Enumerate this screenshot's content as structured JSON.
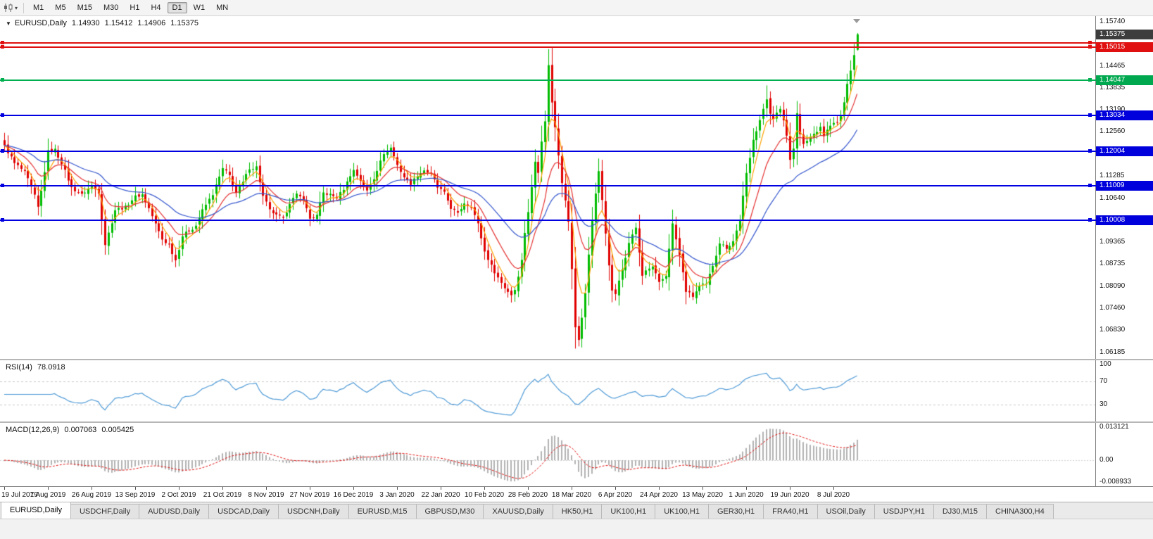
{
  "toolbar": {
    "timeframes": [
      "M1",
      "M5",
      "M15",
      "M30",
      "H1",
      "H4",
      "D1",
      "W1",
      "MN"
    ],
    "active_timeframe": "D1"
  },
  "chart": {
    "title": "EURUSD,Daily",
    "ohlc": {
      "open": "1.14930",
      "high": "1.15412",
      "low": "1.14906",
      "close": "1.15375"
    },
    "ylim": [
      1.06,
      1.159
    ],
    "up_color": "#00bc00",
    "down_color": "#e00000",
    "price_axis": {
      "labels": [
        "1.15740",
        "1.14465",
        "1.13835",
        "1.13190",
        "1.12560",
        "1.11285",
        "1.10640",
        "1.09365",
        "1.08735",
        "1.08090",
        "1.07460",
        "1.06830",
        "1.06185"
      ],
      "badges": [
        {
          "value": "1.15375",
          "bg": "#3d3d3d"
        },
        {
          "value": "1.15015",
          "bg": "#e01010"
        },
        {
          "value": "1.14047",
          "bg": "#00a84f"
        },
        {
          "value": "1.13034",
          "bg": "#0000dc"
        },
        {
          "value": "1.12004",
          "bg": "#0000dc"
        },
        {
          "value": "1.11009",
          "bg": "#0000dc"
        },
        {
          "value": "1.10008",
          "bg": "#0000dc"
        }
      ]
    },
    "hlines": [
      {
        "price": 1.1513,
        "color": "#e01010"
      },
      {
        "price": 1.15015,
        "color": "#e01010"
      },
      {
        "price": 1.14047,
        "color": "#00b050"
      },
      {
        "price": 1.13034,
        "color": "#0000e0"
      },
      {
        "price": 1.12004,
        "color": "#0000e0"
      },
      {
        "price": 1.11009,
        "color": "#0000e0"
      },
      {
        "price": 1.10008,
        "color": "#0000e0"
      }
    ],
    "moving_averages": [
      {
        "period": 5,
        "color": "#ffa200"
      },
      {
        "period": 13,
        "color": "#e43030"
      },
      {
        "period": 34,
        "color": "#3355cc"
      }
    ],
    "dates": [
      "19 Jul 2019",
      "7 Aug 2019",
      "26 Aug 2019",
      "13 Sep 2019",
      "2 Oct 2019",
      "21 Oct 2019",
      "8 Nov 2019",
      "27 Nov 2019",
      "16 Dec 2019",
      "3 Jan 2020",
      "22 Jan 2020",
      "10 Feb 2020",
      "28 Feb 2020",
      "18 Mar 2020",
      "6 Apr 2020",
      "24 Apr 2020",
      "13 May 2020",
      "1 Jun 2020",
      "19 Jun 2020",
      "8 Jul 2020"
    ],
    "candles_per_tick": 13
  },
  "rsi": {
    "label": "RSI(14)",
    "value": "78.0918",
    "axis_labels": [
      "100",
      "70",
      "30"
    ],
    "axis_values": [
      100,
      70,
      30
    ],
    "levels": [
      70,
      30
    ],
    "ylim": [
      0,
      107
    ],
    "color": "#4f9ad6"
  },
  "macd": {
    "label": "MACD(12,26,9)",
    "value_main": "0.007063",
    "value_signal": "0.005425",
    "axis_labels": [
      "0.013121",
      "0.00",
      "-0.008933"
    ],
    "axis_values": [
      0.013121,
      0,
      -0.008933
    ],
    "ylim": [
      -0.0096,
      0.0138
    ],
    "bar_color": "#b2b2b2",
    "signal_color": "#e01010",
    "params": [
      12,
      26,
      9
    ]
  },
  "chart_data": {
    "type": "candlestick",
    "symbol": "EURUSD",
    "timeframe": "Daily",
    "num_candles": 255,
    "ylim": [
      1.06,
      1.159
    ],
    "x_tick_labels": [
      "19 Jul 2019",
      "7 Aug 2019",
      "26 Aug 2019",
      "13 Sep 2019",
      "2 Oct 2019",
      "21 Oct 2019",
      "8 Nov 2019",
      "27 Nov 2019",
      "16 Dec 2019",
      "3 Jan 2020",
      "22 Jan 2020",
      "10 Feb 2020",
      "28 Feb 2020",
      "18 Mar 2020",
      "6 Apr 2020",
      "24 Apr 2020",
      "13 May 2020",
      "1 Jun 2020",
      "19 Jun 2020",
      "8 Jul 2020"
    ],
    "close_anchors": [
      [
        0,
        1.1215
      ],
      [
        3,
        1.1165
      ],
      [
        6,
        1.114
      ],
      [
        9,
        1.1072
      ],
      [
        10,
        1.1038
      ],
      [
        11,
        1.1085
      ],
      [
        13,
        1.12
      ],
      [
        15,
        1.1205
      ],
      [
        17,
        1.1165
      ],
      [
        20,
        1.1095
      ],
      [
        23,
        1.1075
      ],
      [
        26,
        1.11
      ],
      [
        28,
        1.108
      ],
      [
        30,
        1.093
      ],
      [
        33,
        1.103
      ],
      [
        36,
        1.104
      ],
      [
        39,
        1.107
      ],
      [
        41,
        1.1075
      ],
      [
        43,
        1.1035
      ],
      [
        45,
        1.099
      ],
      [
        47,
        1.0945
      ],
      [
        49,
        1.093
      ],
      [
        51,
        1.0885
      ],
      [
        53,
        1.0955
      ],
      [
        55,
        1.097
      ],
      [
        57,
        1.0985
      ],
      [
        59,
        1.103
      ],
      [
        62,
        1.1075
      ],
      [
        65,
        1.115
      ],
      [
        67,
        1.113
      ],
      [
        69,
        1.108
      ],
      [
        71,
        1.111
      ],
      [
        73,
        1.115
      ],
      [
        75,
        1.1155
      ],
      [
        77,
        1.107
      ],
      [
        79,
        1.103
      ],
      [
        81,
        1.1015
      ],
      [
        83,
        1.1005
      ],
      [
        85,
        1.105
      ],
      [
        87,
        1.1075
      ],
      [
        89,
        1.106
      ],
      [
        91,
        1.1005
      ],
      [
        93,
        1.1015
      ],
      [
        95,
        1.108
      ],
      [
        97,
        1.1075
      ],
      [
        99,
        1.1065
      ],
      [
        101,
        1.109
      ],
      [
        103,
        1.113
      ],
      [
        104,
        1.1145
      ],
      [
        106,
        1.1115
      ],
      [
        108,
        1.1085
      ],
      [
        110,
        1.112
      ],
      [
        112,
        1.1175
      ],
      [
        114,
        1.12
      ],
      [
        115,
        1.121
      ],
      [
        117,
        1.116
      ],
      [
        119,
        1.1125
      ],
      [
        121,
        1.1105
      ],
      [
        123,
        1.113
      ],
      [
        125,
        1.1145
      ],
      [
        127,
        1.1135
      ],
      [
        129,
        1.1095
      ],
      [
        131,
        1.108
      ],
      [
        133,
        1.1035
      ],
      [
        135,
        1.102
      ],
      [
        137,
        1.105
      ],
      [
        139,
        1.104
      ],
      [
        141,
        1.099
      ],
      [
        143,
        1.091
      ],
      [
        145,
        1.087
      ],
      [
        147,
        1.0835
      ],
      [
        149,
        1.0805
      ],
      [
        151,
        1.0785
      ],
      [
        152,
        1.08
      ],
      [
        153,
        1.084
      ],
      [
        154,
        1.0885
      ],
      [
        155,
        1.0965
      ],
      [
        156,
        1.1025
      ],
      [
        157,
        1.1095
      ],
      [
        158,
        1.117
      ],
      [
        159,
        1.114
      ],
      [
        160,
        1.123
      ],
      [
        161,
        1.1285
      ],
      [
        162,
        1.145
      ],
      [
        163,
        1.134
      ],
      [
        164,
        1.127
      ],
      [
        165,
        1.119
      ],
      [
        166,
        1.111
      ],
      [
        167,
        1.106
      ],
      [
        168,
        1.0995
      ],
      [
        169,
        1.086
      ],
      [
        170,
        1.069
      ],
      [
        171,
        1.0655
      ],
      [
        172,
        1.072
      ],
      [
        173,
        1.079
      ],
      [
        174,
        1.09
      ],
      [
        175,
        1.1
      ],
      [
        176,
        1.108
      ],
      [
        177,
        1.114
      ],
      [
        178,
        1.106
      ],
      [
        179,
        1.096
      ],
      [
        180,
        1.087
      ],
      [
        181,
        1.08
      ],
      [
        182,
        1.079
      ],
      [
        183,
        1.0825
      ],
      [
        184,
        1.086
      ],
      [
        185,
        1.089
      ],
      [
        186,
        1.0935
      ],
      [
        187,
        1.096
      ],
      [
        188,
        1.098
      ],
      [
        189,
        1.0905
      ],
      [
        190,
        1.084
      ],
      [
        191,
        1.0855
      ],
      [
        193,
        1.0865
      ],
      [
        195,
        1.082
      ],
      [
        197,
        1.084
      ],
      [
        198,
        1.092
      ],
      [
        199,
        1.099
      ],
      [
        200,
        1.0945
      ],
      [
        201,
        1.09
      ],
      [
        203,
        1.0795
      ],
      [
        205,
        1.078
      ],
      [
        207,
        1.081
      ],
      [
        209,
        1.0815
      ],
      [
        211,
        1.087
      ],
      [
        213,
        1.0935
      ],
      [
        215,
        1.092
      ],
      [
        217,
        1.094
      ],
      [
        219,
        1.1
      ],
      [
        220,
        1.107
      ],
      [
        221,
        1.1135
      ],
      [
        222,
        1.118
      ],
      [
        223,
        1.1235
      ],
      [
        224,
        1.126
      ],
      [
        225,
        1.129
      ],
      [
        226,
        1.132
      ],
      [
        227,
        1.135
      ],
      [
        228,
        1.131
      ],
      [
        229,
        1.1295
      ],
      [
        230,
        1.131
      ],
      [
        231,
        1.132
      ],
      [
        232,
        1.129
      ],
      [
        233,
        1.1245
      ],
      [
        234,
        1.1175
      ],
      [
        235,
        1.121
      ],
      [
        236,
        1.131
      ],
      [
        237,
        1.125
      ],
      [
        238,
        1.122
      ],
      [
        239,
        1.123
      ],
      [
        240,
        1.124
      ],
      [
        241,
        1.125
      ],
      [
        242,
        1.1255
      ],
      [
        243,
        1.127
      ],
      [
        244,
        1.1245
      ],
      [
        245,
        1.126
      ],
      [
        246,
        1.1275
      ],
      [
        247,
        1.128
      ],
      [
        248,
        1.1285
      ],
      [
        249,
        1.13
      ],
      [
        250,
        1.134
      ],
      [
        251,
        1.1395
      ],
      [
        252,
        1.143
      ],
      [
        253,
        1.148
      ],
      [
        254,
        1.15375
      ]
    ],
    "extremes": [
      [
        162,
        "high",
        1.1495
      ],
      [
        171,
        "low",
        1.0636
      ],
      [
        227,
        "high",
        1.139
      ],
      [
        236,
        "high",
        1.1345
      ]
    ],
    "last_candle": {
      "open": 1.1493,
      "high": 1.15412,
      "low": 1.14906,
      "close": 1.15375
    },
    "indicator_readouts": {
      "rsi_current": 78.0918,
      "macd_main": 0.007063,
      "macd_signal": 0.005425
    }
  },
  "tabs": {
    "items": [
      {
        "label": "EURUSD,Daily",
        "active": true
      },
      {
        "label": "USDCHF,Daily",
        "active": false
      },
      {
        "label": "AUDUSD,Daily",
        "active": false
      },
      {
        "label": "USDCAD,Daily",
        "active": false
      },
      {
        "label": "USDCNH,Daily",
        "active": false
      },
      {
        "label": "EURUSD,M15",
        "active": false
      },
      {
        "label": "GBPUSD,M30",
        "active": false
      },
      {
        "label": "XAUUSD,Daily",
        "active": false
      },
      {
        "label": "HK50,H1",
        "active": false
      },
      {
        "label": "UK100,H1",
        "active": false
      },
      {
        "label": "UK100,H1",
        "active": false
      },
      {
        "label": "GER30,H1",
        "active": false
      },
      {
        "label": "FRA40,H1",
        "active": false
      },
      {
        "label": "USOil,Daily",
        "active": false
      },
      {
        "label": "USDJPY,H1",
        "active": false
      },
      {
        "label": "DJ30,M15",
        "active": false
      },
      {
        "label": "CHINA300,H4",
        "active": false
      }
    ]
  }
}
